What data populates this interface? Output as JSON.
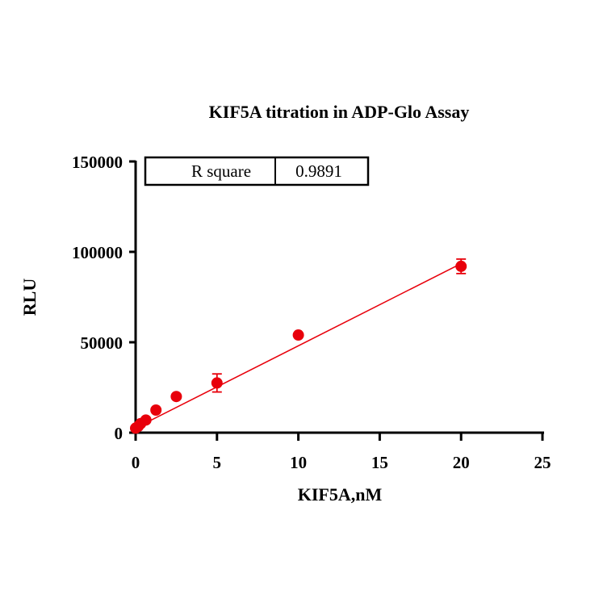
{
  "chart_data": {
    "type": "scatter",
    "title": "KIF5A titration in ADP-Glo Assay",
    "xlabel": "KIF5A,nM",
    "ylabel": "RLU",
    "xlim": [
      0,
      25
    ],
    "ylim": [
      0,
      150000
    ],
    "x_ticks": [
      "0",
      "5",
      "10",
      "15",
      "20",
      "25"
    ],
    "y_ticks": [
      "0",
      "50000",
      "100000",
      "150000"
    ],
    "grid": false,
    "series": [
      {
        "name": "KIF5A",
        "color": "#e8000b",
        "points": [
          {
            "x": 0.0,
            "y": 2500,
            "err": 300
          },
          {
            "x": 0.16,
            "y": 3500,
            "err": 300
          },
          {
            "x": 0.31,
            "y": 5000,
            "err": 400
          },
          {
            "x": 0.63,
            "y": 7000,
            "err": 500
          },
          {
            "x": 1.25,
            "y": 12500,
            "err": 600
          },
          {
            "x": 2.5,
            "y": 20000,
            "err": 800
          },
          {
            "x": 5.0,
            "y": 27500,
            "err": 5000
          },
          {
            "x": 10.0,
            "y": 54000,
            "err": 1200
          },
          {
            "x": 20.0,
            "y": 92000,
            "err": 4000
          }
        ]
      }
    ],
    "fit_line": {
      "x": [
        0,
        20
      ],
      "y": [
        2600,
        93500
      ],
      "color": "#e8000b"
    },
    "stats_table": {
      "label": "R square",
      "value": "0.9891"
    }
  }
}
